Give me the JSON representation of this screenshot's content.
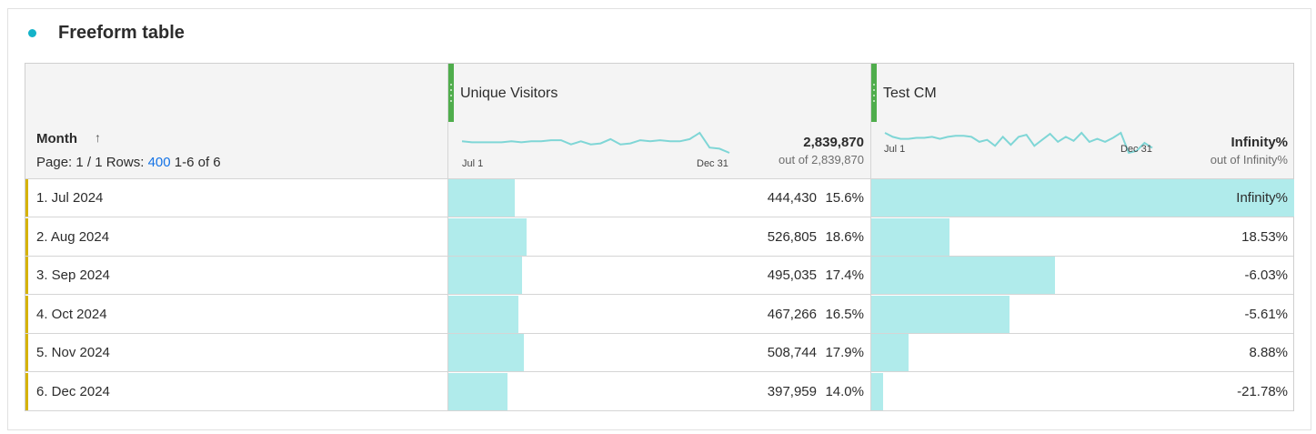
{
  "panel": {
    "title": "Freeform table",
    "accent_color": "#14b3c9"
  },
  "table": {
    "dimension": {
      "name": "Month",
      "sort_icon": "arrow-up-icon",
      "pager_prefix": "Page: 1 / 1 Rows:",
      "rows_per_page": "400",
      "range": "1-6 of 6"
    },
    "metrics": [
      {
        "name": "Unique Visitors",
        "total": "2,839,870",
        "total_sub": "out of 2,839,870",
        "spark_start": "Jul 1",
        "spark_end": "Dec 31",
        "spark_values": [
          62,
          61,
          61,
          61,
          61,
          62,
          61,
          62,
          62,
          63,
          63,
          59,
          62,
          59,
          60,
          64,
          59,
          60,
          63,
          62,
          63,
          62,
          62,
          64,
          70,
          56,
          55,
          51
        ]
      },
      {
        "name": "Test CM",
        "total": "Infinity%",
        "total_sub": "out of Infinity%",
        "spark_start": "Jul 1",
        "spark_end": "Dec 31",
        "spark_values": [
          64,
          60,
          58,
          58,
          59,
          59,
          60,
          58,
          60,
          61,
          61,
          60,
          55,
          57,
          51,
          60,
          52,
          60,
          62,
          51,
          57,
          63,
          55,
          60,
          56,
          64,
          55,
          58,
          55,
          59,
          64,
          44,
          46,
          54,
          49
        ]
      }
    ],
    "bar_color": "#b0ebeb",
    "row_accent_color": "#d6b30a",
    "grip_color": "#4fad4c",
    "rows": [
      {
        "label": "1.  Jul 2024",
        "uv": "444,430",
        "uv_pct": "15.6%",
        "uv_frac": 0.156,
        "cm": "Infinity%",
        "cm_frac": 1.0
      },
      {
        "label": "2.  Aug 2024",
        "uv": "526,805",
        "uv_pct": "18.6%",
        "uv_frac": 0.186,
        "cm": "18.53%",
        "cm_frac": 0.185
      },
      {
        "label": "3.  Sep 2024",
        "uv": "495,035",
        "uv_pct": "17.4%",
        "uv_frac": 0.174,
        "cm": "-6.03%",
        "cm_frac": 0.435
      },
      {
        "label": "4.  Oct 2024",
        "uv": "467,266",
        "uv_pct": "16.5%",
        "uv_frac": 0.165,
        "cm": "-5.61%",
        "cm_frac": 0.326
      },
      {
        "label": "5.  Nov 2024",
        "uv": "508,744",
        "uv_pct": "17.9%",
        "uv_frac": 0.179,
        "cm": "8.88%",
        "cm_frac": 0.089
      },
      {
        "label": "6.  Dec 2024",
        "uv": "397,959",
        "uv_pct": "14.0%",
        "uv_frac": 0.14,
        "cm": "-21.78%",
        "cm_frac": 0.027
      }
    ]
  }
}
